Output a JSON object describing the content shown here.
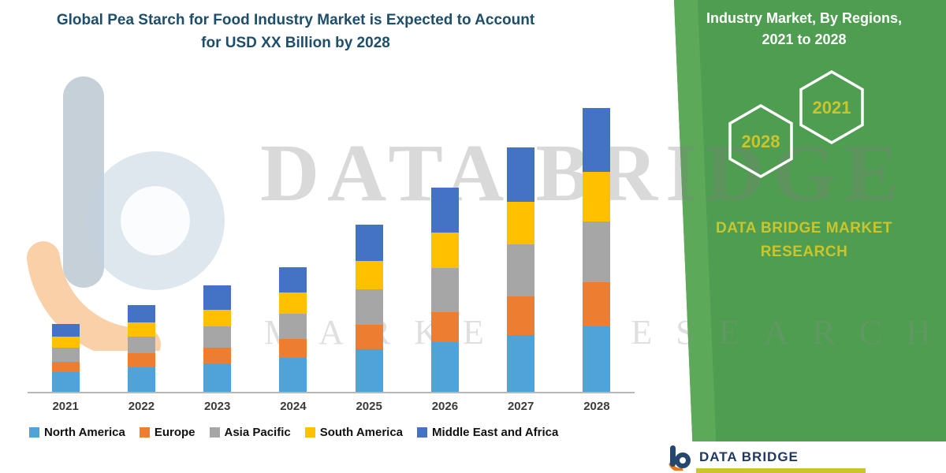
{
  "theme": {
    "green": "#4e9d50",
    "green_stripe": "#5ca95a",
    "accent_yellow": "#c9c52e",
    "title_color": "#1d4e6b"
  },
  "side_panel": {
    "heading_line1": "Industry Market, By Regions,",
    "heading_line2": "2021 to 2028",
    "hex_back": "2028",
    "hex_front": "2021",
    "brand": "DATA BRIDGE MARKET RESEARCH"
  },
  "watermark": {
    "line1": "DATA BRIDGE",
    "line2": "MARKET RESEARCH"
  },
  "footer_card": {
    "brand": "DATA BRIDGE"
  },
  "chart_data": {
    "type": "bar",
    "stacked": true,
    "title": "Global Pea Starch for Food Industry Market is Expected to Account for USD XX Billion by 2028",
    "categories": [
      "2021",
      "2022",
      "2023",
      "2024",
      "2025",
      "2026",
      "2027",
      "2028"
    ],
    "series": [
      {
        "name": "North America",
        "color": "#4fa3d8",
        "values": [
          0.7,
          0.85,
          1.0,
          1.2,
          1.5,
          1.75,
          2.0,
          2.3
        ]
      },
      {
        "name": "Europe",
        "color": "#ed7d31",
        "values": [
          0.35,
          0.5,
          0.55,
          0.65,
          0.85,
          1.05,
          1.35,
          1.55
        ]
      },
      {
        "name": "Asia Pacific",
        "color": "#a6a6a6",
        "values": [
          0.5,
          0.6,
          0.75,
          0.9,
          1.25,
          1.55,
          1.85,
          2.15
        ]
      },
      {
        "name": "South America",
        "color": "#ffc000",
        "values": [
          0.4,
          0.5,
          0.6,
          0.75,
          1.0,
          1.25,
          1.5,
          1.75
        ]
      },
      {
        "name": "Middle East and Africa",
        "color": "#4472c4",
        "values": [
          0.45,
          0.6,
          0.85,
          0.9,
          1.3,
          1.6,
          1.9,
          2.25
        ]
      }
    ],
    "xlabel": "",
    "ylabel": "",
    "y_axis_visible": false,
    "ylim": [
      0,
      10.5
    ],
    "grid": false,
    "legend_position": "bottom",
    "values_note": "heights estimated from pixels; no y-axis tick labels shown"
  }
}
